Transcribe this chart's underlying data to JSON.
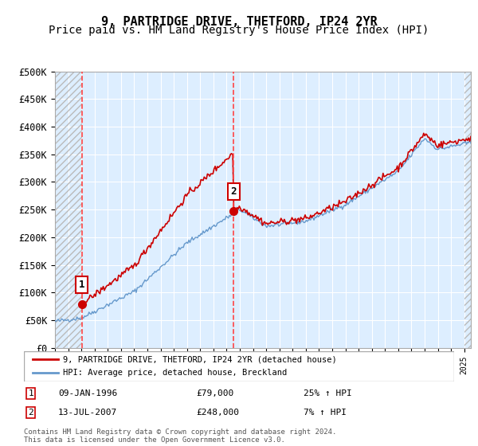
{
  "title": "9, PARTRIDGE DRIVE, THETFORD, IP24 2YR",
  "subtitle": "Price paid vs. HM Land Registry's House Price Index (HPI)",
  "xlabel": "",
  "ylabel": "",
  "ylim": [
    0,
    500000
  ],
  "yticks": [
    0,
    50000,
    100000,
    150000,
    200000,
    250000,
    300000,
    350000,
    400000,
    450000,
    500000
  ],
  "ytick_labels": [
    "£0",
    "£50K",
    "£100K",
    "£150K",
    "£200K",
    "£250K",
    "£300K",
    "£350K",
    "£400K",
    "£450K",
    "£500K"
  ],
  "xlim_start": 1994.0,
  "xlim_end": 2025.5,
  "purchase1_x": 1996.03,
  "purchase1_y": 79000,
  "purchase2_x": 2007.53,
  "purchase2_y": 248000,
  "purchase1_label": "1",
  "purchase2_label": "2",
  "line_color_red": "#cc0000",
  "line_color_blue": "#6699cc",
  "dashed_line_color": "#ff4444",
  "bg_hatch_color": "#dddddd",
  "bg_plot_color": "#ddeeff",
  "legend_entry1": "9, PARTRIDGE DRIVE, THETFORD, IP24 2YR (detached house)",
  "legend_entry2": "HPI: Average price, detached house, Breckland",
  "annotation1_date": "09-JAN-1996",
  "annotation1_price": "£79,000",
  "annotation1_hpi": "25% ↑ HPI",
  "annotation2_date": "13-JUL-2007",
  "annotation2_price": "£248,000",
  "annotation2_hpi": "7% ↑ HPI",
  "footer": "Contains HM Land Registry data © Crown copyright and database right 2024.\nThis data is licensed under the Open Government Licence v3.0.",
  "title_fontsize": 11,
  "subtitle_fontsize": 10
}
